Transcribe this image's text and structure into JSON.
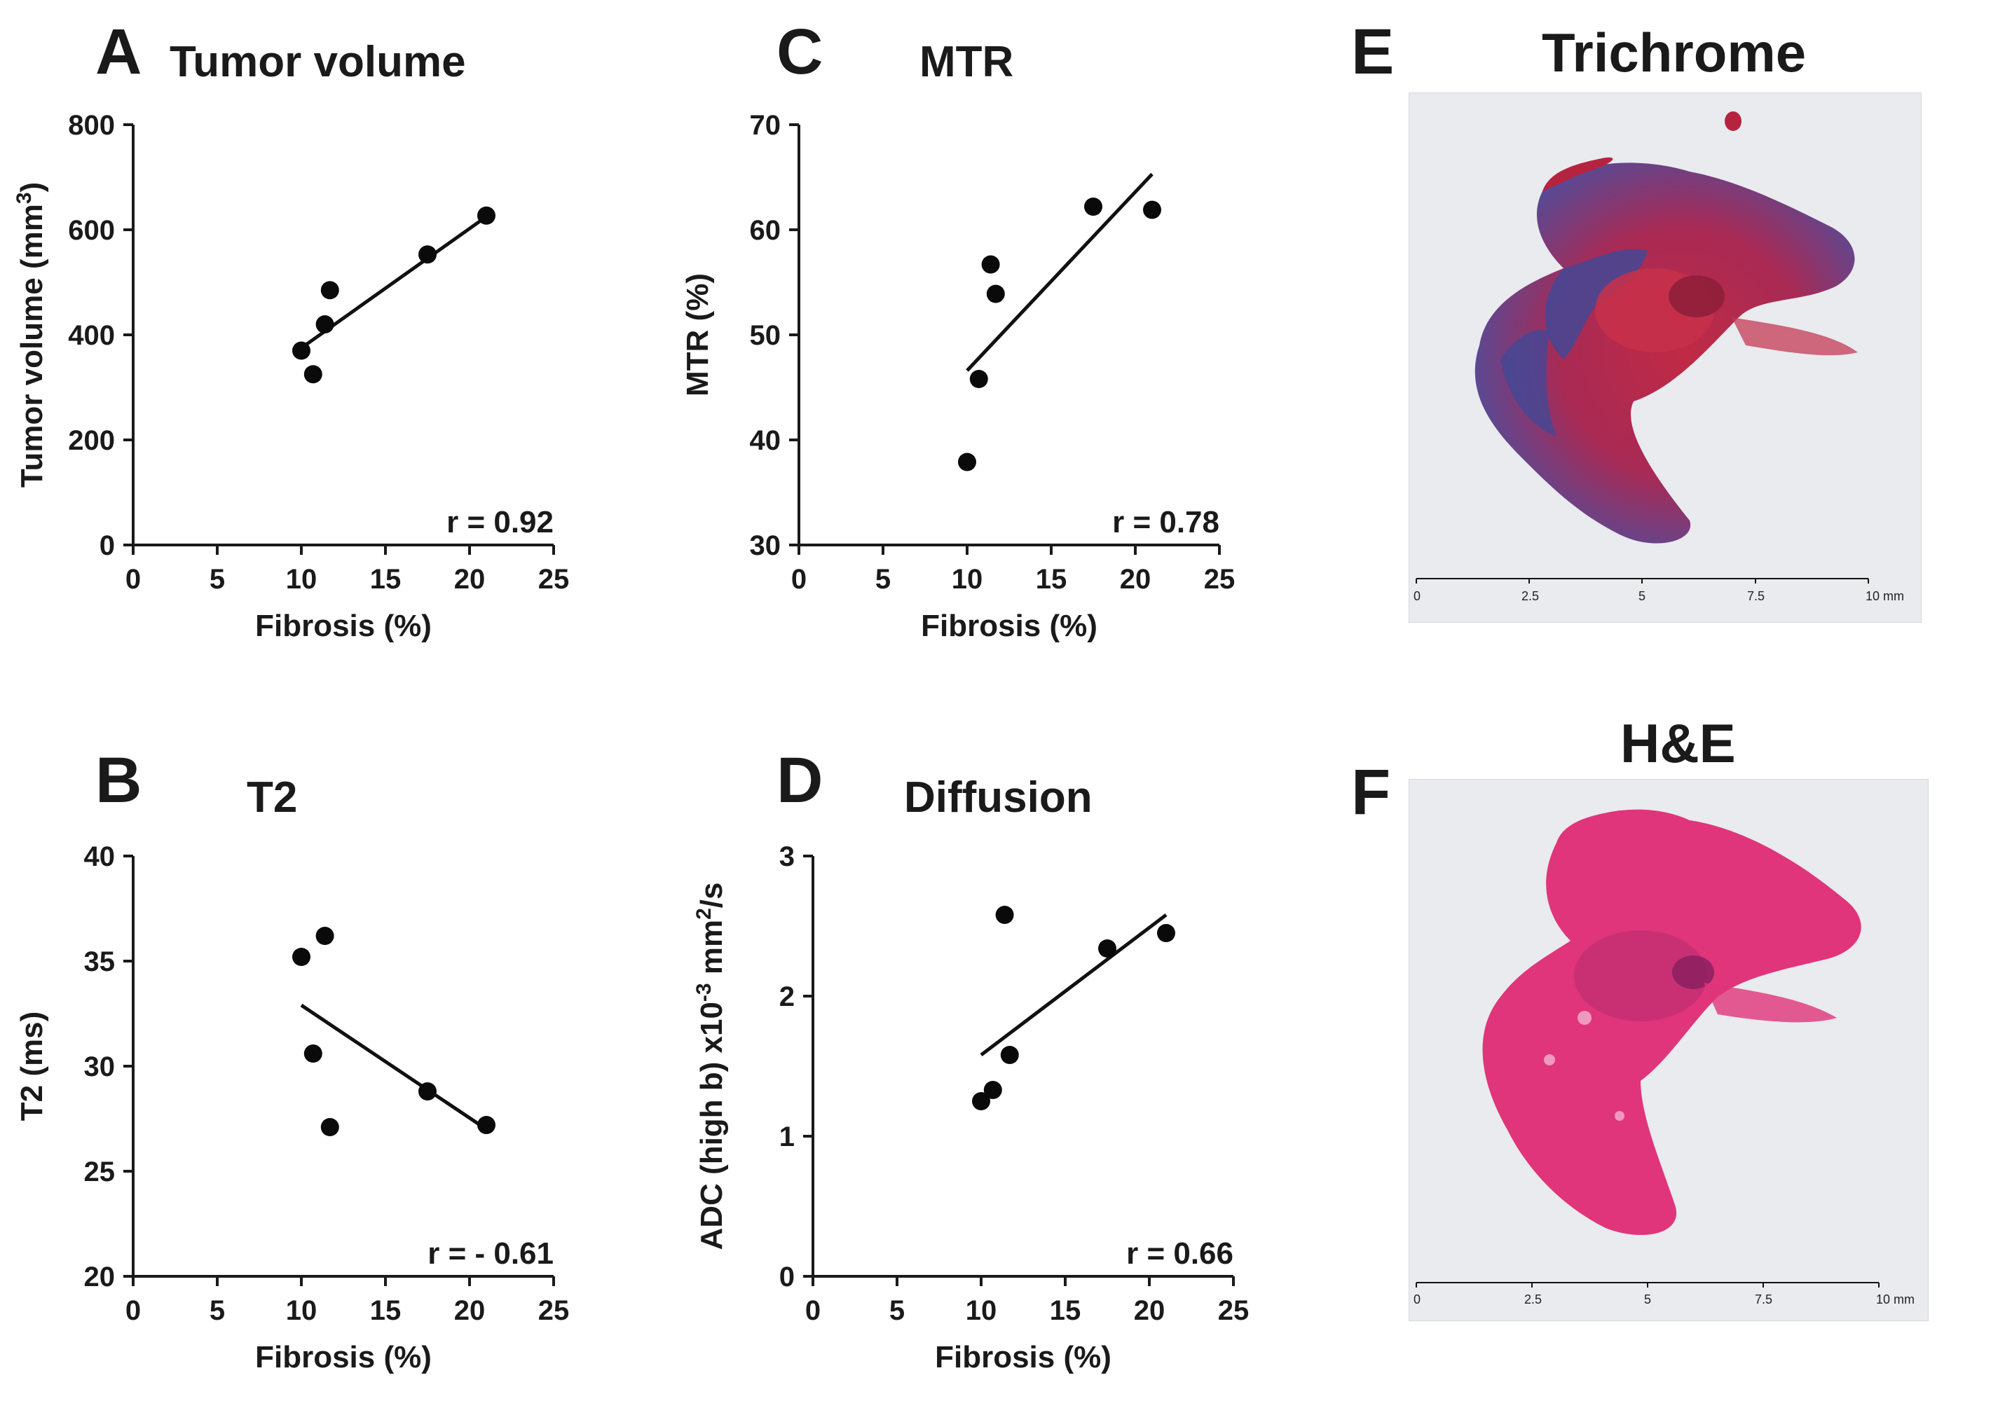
{
  "panels": {
    "A": {
      "letter": "A",
      "title": "Tumor volume"
    },
    "B": {
      "letter": "B",
      "title": "T2"
    },
    "C": {
      "letter": "C",
      "title": "MTR"
    },
    "D": {
      "letter": "D",
      "title": "Diffusion"
    },
    "E": {
      "letter": "E",
      "title": "Trichrome"
    },
    "F": {
      "letter": "F",
      "title": "H&E"
    }
  },
  "chart_data": [
    {
      "id": "A",
      "type": "scatter",
      "title": "Tumor volume",
      "xlabel": "Fibrosis (%)",
      "ylabel": "Tumor volume (mm3)",
      "ylabel_main": "Tumor volume (mm",
      "ylabel_sup": "3",
      "ylabel_tail": ")",
      "xlim": [
        0,
        25
      ],
      "ylim": [
        0,
        800
      ],
      "xticks": [
        0,
        5,
        10,
        15,
        20,
        25
      ],
      "yticks": [
        0,
        200,
        400,
        600,
        800
      ],
      "points": [
        [
          10.0,
          370
        ],
        [
          10.7,
          325
        ],
        [
          11.4,
          420
        ],
        [
          11.7,
          485
        ],
        [
          17.5,
          553
        ],
        [
          21.0,
          627
        ]
      ],
      "fit": [
        [
          10.0,
          375
        ],
        [
          21.0,
          625
        ]
      ],
      "annotation": "r = 0.92"
    },
    {
      "id": "B",
      "type": "scatter",
      "title": "T2",
      "xlabel": "Fibrosis (%)",
      "ylabel": "T2  (ms)",
      "xlim": [
        0,
        25
      ],
      "ylim": [
        20,
        40
      ],
      "xticks": [
        0,
        5,
        10,
        15,
        20,
        25
      ],
      "yticks": [
        20,
        25,
        30,
        35,
        40
      ],
      "points": [
        [
          10.0,
          35.2
        ],
        [
          10.7,
          30.6
        ],
        [
          11.4,
          36.2
        ],
        [
          11.7,
          27.1
        ],
        [
          17.5,
          28.8
        ],
        [
          21.0,
          27.2
        ]
      ],
      "fit": [
        [
          10.0,
          32.9
        ],
        [
          21.0,
          27.0
        ]
      ],
      "annotation": "r = - 0.61"
    },
    {
      "id": "C",
      "type": "scatter",
      "title": "MTR",
      "xlabel": "Fibrosis (%)",
      "ylabel": "MTR (%)",
      "xlim": [
        0,
        25
      ],
      "ylim": [
        30,
        70
      ],
      "xticks": [
        0,
        5,
        10,
        15,
        20,
        25
      ],
      "yticks": [
        30,
        40,
        50,
        60,
        70
      ],
      "points": [
        [
          10.0,
          37.9
        ],
        [
          10.7,
          45.8
        ],
        [
          11.4,
          56.7
        ],
        [
          11.7,
          53.9
        ],
        [
          17.5,
          62.2
        ],
        [
          21.0,
          61.9
        ]
      ],
      "fit": [
        [
          10.0,
          46.6
        ],
        [
          21.0,
          65.3
        ]
      ],
      "annotation": "r = 0.78"
    },
    {
      "id": "D",
      "type": "scatter",
      "title": "Diffusion",
      "xlabel": "Fibrosis (%)",
      "ylabel": "ADC (high b) x10-3 mm2/s",
      "ylabel_main": "ADC (high b) x10",
      "ylabel_sup": "-3",
      "ylabel_mid": " mm",
      "ylabel_sup2": "2",
      "ylabel_tail": "/s",
      "xlim": [
        0,
        25
      ],
      "ylim": [
        0,
        3
      ],
      "xticks": [
        0,
        5,
        10,
        15,
        20,
        25
      ],
      "yticks": [
        0,
        1,
        2,
        3
      ],
      "points": [
        [
          10.0,
          1.25
        ],
        [
          10.7,
          1.33
        ],
        [
          11.4,
          2.58
        ],
        [
          11.7,
          1.58
        ],
        [
          17.5,
          2.34
        ],
        [
          21.0,
          2.45
        ]
      ],
      "fit": [
        [
          10.0,
          1.58
        ],
        [
          21.0,
          2.58
        ]
      ],
      "annotation": "r = 0.66"
    }
  ],
  "scale_bar": {
    "ticks": [
      "0",
      "2.5",
      "5",
      "7.5",
      "10 mm"
    ]
  },
  "colors": {
    "trichrome_red": "#b5243f",
    "trichrome_blue": "#3d4a9a",
    "he_pink": "#e0357a",
    "slide_bg": "#e9ebee"
  }
}
